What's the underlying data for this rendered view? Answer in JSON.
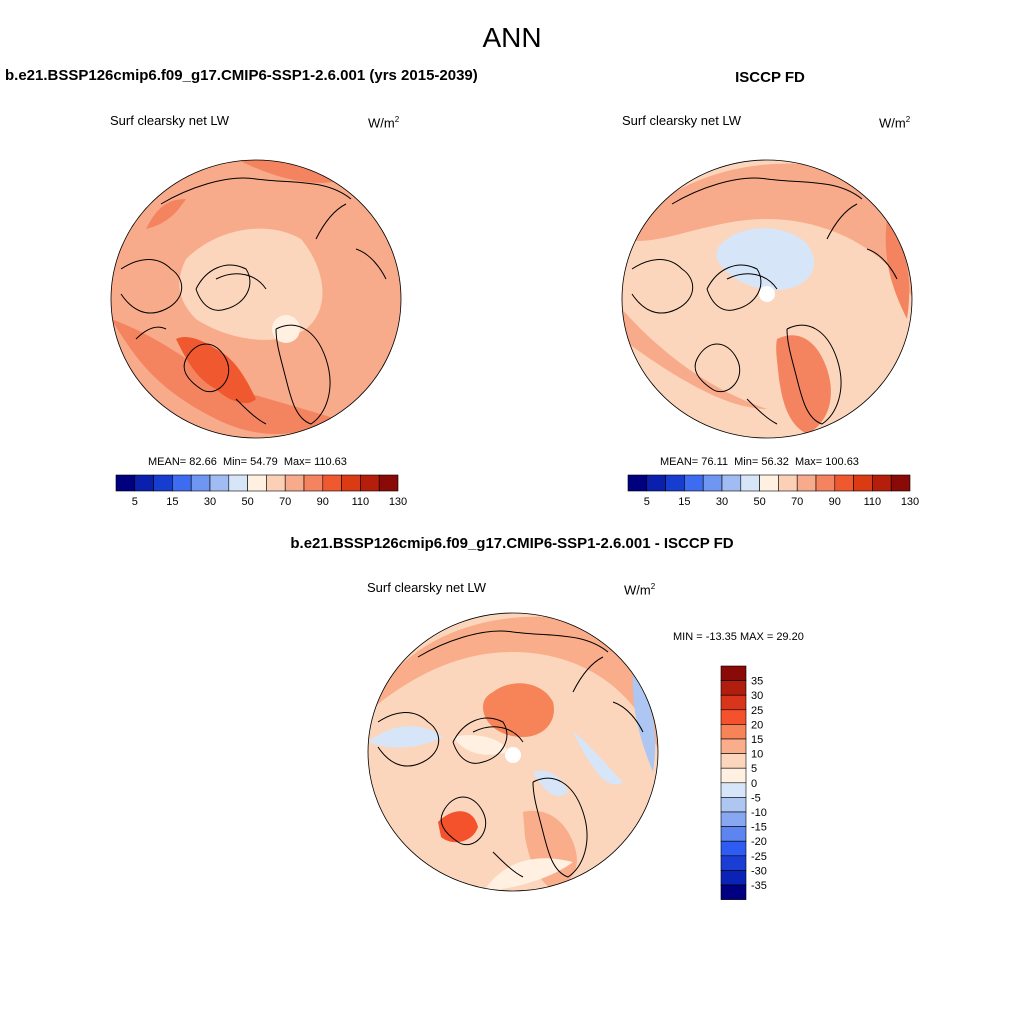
{
  "main_title": "ANN",
  "panels": [
    {
      "title": "b.e21.BSSP126cmip6.f09_g17.CMIP6-SSP1-2.6.001 (yrs 2015-2039)",
      "variable": "Surf clearsky net LW",
      "units_base": "W/m",
      "units_exp": "2",
      "stats": {
        "mean_label": "MEAN=",
        "mean": "82.66",
        "min_label": "Min=",
        "min": "54.79",
        "max_label": "Max=",
        "max": "110.63"
      }
    },
    {
      "title": "ISCCP FD",
      "variable": "Surf clearsky net LW",
      "units_base": "W/m",
      "units_exp": "2",
      "stats": {
        "mean_label": "MEAN=",
        "mean": "76.11",
        "min_label": "Min=",
        "min": "56.32",
        "max_label": "Max=",
        "max": "100.63"
      }
    },
    {
      "title": "b.e21.BSSP126cmip6.f09_g17.CMIP6-SSP1-2.6.001 - ISCCP FD",
      "variable": "Surf clearsky net LW",
      "units_base": "W/m",
      "units_exp": "2",
      "stats_text": "MIN = -13.35 MAX =  29.20"
    }
  ],
  "abs_colorbar": {
    "colors": [
      "#00007f",
      "#0a1fae",
      "#173dd0",
      "#3d6cf2",
      "#6e96f2",
      "#a1bcf2",
      "#d6e5f8",
      "#fff0e2",
      "#fbd0b7",
      "#f8ab8a",
      "#f4845f",
      "#f0582f",
      "#db3b12",
      "#b51e0a",
      "#8a0a07"
    ],
    "tick_labels": [
      "5",
      "15",
      "30",
      "50",
      "70",
      "90",
      "110",
      "130"
    ]
  },
  "diff_colorbar": {
    "colors": [
      "#8a0a07",
      "#b21e0d",
      "#d9351a",
      "#f4522d",
      "#f78358",
      "#f9ad8a",
      "#fbd6bd",
      "#fff0e2",
      "#d6e5f8",
      "#aec6f2",
      "#87a7f2",
      "#5d85f2",
      "#2e5cf2",
      "#1a3dd4",
      "#0a22b5",
      "#000080"
    ],
    "tick_labels": [
      "35",
      "30",
      "25",
      "20",
      "15",
      "10",
      "5",
      "0",
      "-5",
      "-10",
      "-15",
      "-20",
      "-25",
      "-30",
      "-35"
    ]
  },
  "legend": {
    "map_fill": "#fbd6bd",
    "coast_color": "#000000",
    "field_colors": {
      "orange": "#f8ab8a",
      "deep_orange": "#f4845f",
      "red": "#f0582f",
      "light": "#fff0e2",
      "light_blue": "#d6e5f8",
      "blue": "#a1bcf2"
    }
  }
}
